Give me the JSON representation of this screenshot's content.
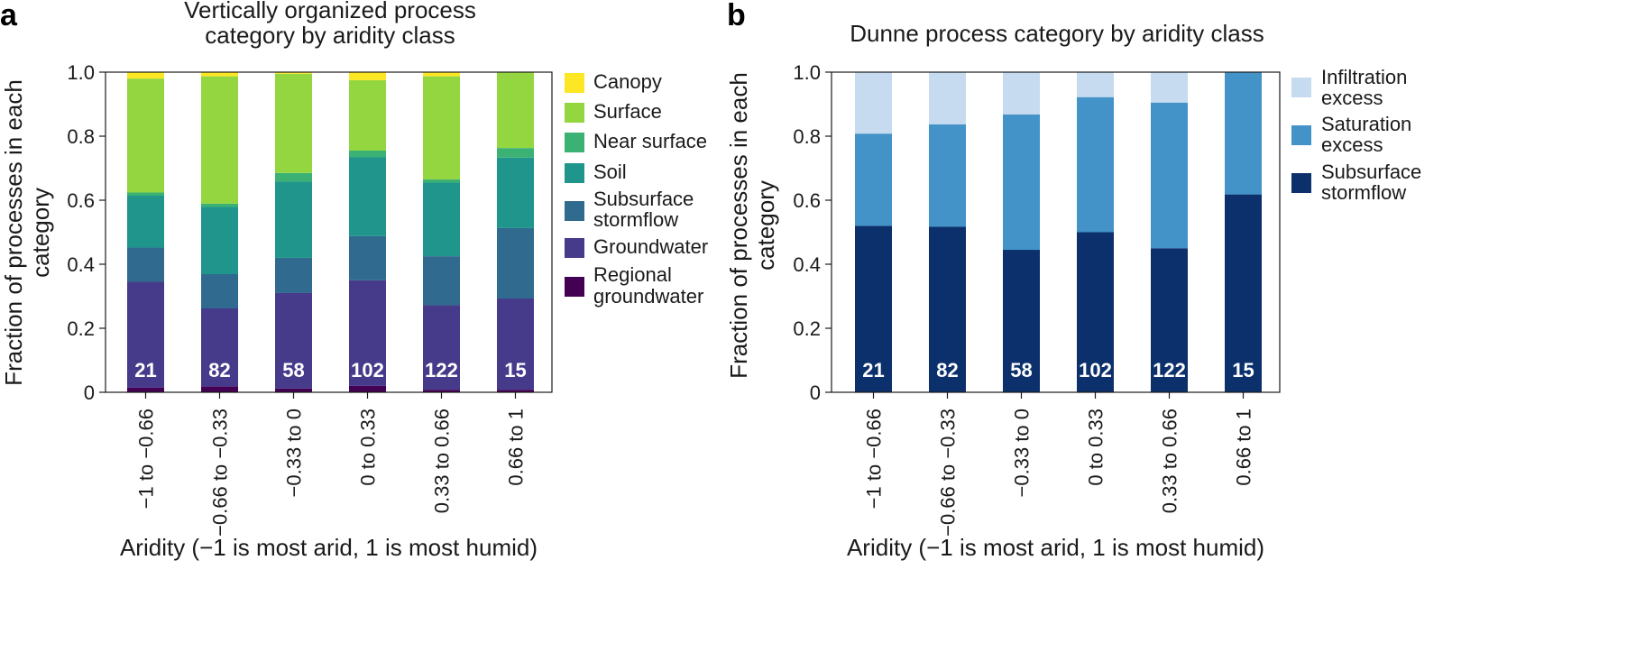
{
  "categories": [
    "−1 to −0.66",
    "−0.66 to −0.33",
    "−0.33 to 0",
    "0 to 0.33",
    "0.33 to 0.66",
    "0.66 to 1"
  ],
  "counts": [
    "21",
    "82",
    "58",
    "102",
    "122",
    "15"
  ],
  "chart_data": [
    {
      "panel": "a",
      "type": "bar",
      "stacked": true,
      "title_lines": [
        "Vertically organized process",
        "category by aridity class"
      ],
      "xlabel": "Aridity (−1 is most arid, 1 is most humid)",
      "ylabel_lines": [
        "Fraction of processes in each",
        "category"
      ],
      "ylim": [
        0,
        1.0
      ],
      "yticks": [
        "0",
        "0.2",
        "0.4",
        "0.6",
        "0.8",
        "1.0"
      ],
      "series": [
        {
          "name": "Regional groundwater",
          "legend_lines": [
            "Regional",
            "groundwater"
          ],
          "color": "#440154",
          "values": [
            0.015,
            0.018,
            0.012,
            0.02,
            0.008,
            0.008
          ]
        },
        {
          "name": "Groundwater",
          "legend_lines": [
            "Groundwater"
          ],
          "color": "#463a8a",
          "values": [
            0.33,
            0.244,
            0.298,
            0.33,
            0.264,
            0.285
          ]
        },
        {
          "name": "Subsurface stormflow",
          "legend_lines": [
            "Subsurface",
            "stormflow"
          ],
          "color": "#306a8e",
          "values": [
            0.107,
            0.107,
            0.11,
            0.138,
            0.153,
            0.22
          ]
        },
        {
          "name": "Soil",
          "legend_lines": [
            "Soil"
          ],
          "color": "#1f958b",
          "values": [
            0.162,
            0.21,
            0.238,
            0.247,
            0.23,
            0.22
          ]
        },
        {
          "name": "Near surface",
          "legend_lines": [
            "Near surface"
          ],
          "color": "#3bb273",
          "values": [
            0.01,
            0.01,
            0.027,
            0.02,
            0.01,
            0.03
          ]
        },
        {
          "name": "Surface",
          "legend_lines": [
            "Surface"
          ],
          "color": "#94d640",
          "values": [
            0.356,
            0.398,
            0.31,
            0.22,
            0.322,
            0.237
          ]
        },
        {
          "name": "Canopy",
          "legend_lines": [
            "Canopy"
          ],
          "color": "#fde725",
          "values": [
            0.02,
            0.013,
            0.005,
            0.025,
            0.013,
            0.0
          ]
        }
      ]
    },
    {
      "panel": "b",
      "type": "bar",
      "stacked": true,
      "title_lines": [
        "Dunne process category by aridity class"
      ],
      "xlabel": "Aridity (−1 is most arid, 1 is most humid)",
      "ylabel_lines": [
        "Fraction of processes in each",
        "category"
      ],
      "ylim": [
        0,
        1.0
      ],
      "yticks": [
        "0",
        "0.2",
        "0.4",
        "0.6",
        "0.8",
        "1.0"
      ],
      "series": [
        {
          "name": "Subsurface stormflow",
          "legend_lines": [
            "Subsurface",
            "stormflow"
          ],
          "color": "#0b306b",
          "values": [
            0.52,
            0.517,
            0.445,
            0.5,
            0.45,
            0.618
          ]
        },
        {
          "name": "Saturation excess",
          "legend_lines": [
            "Saturation",
            "excess"
          ],
          "color": "#4393c8",
          "values": [
            0.288,
            0.32,
            0.423,
            0.422,
            0.455,
            0.382
          ]
        },
        {
          "name": "Infiltration excess",
          "legend_lines": [
            "Infiltration",
            "excess"
          ],
          "color": "#c6dbef",
          "values": [
            0.192,
            0.163,
            0.132,
            0.078,
            0.095,
            0.0
          ]
        }
      ]
    }
  ]
}
